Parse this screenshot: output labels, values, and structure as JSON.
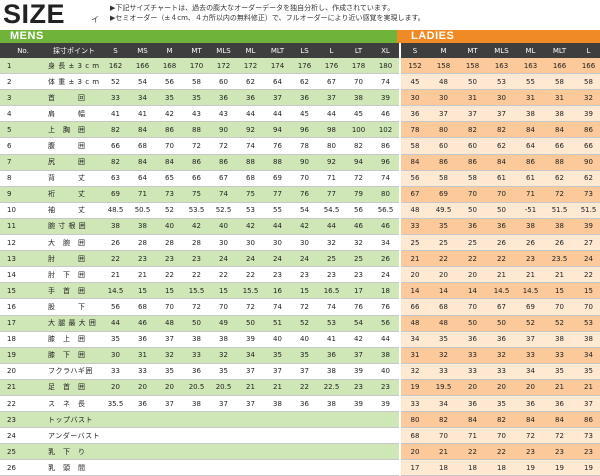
{
  "title": "SIZE",
  "title_mark": "イ",
  "notes": [
    "▶下記サイズチャートは、過去の膨大なオーダーデータを独自分析し、作成されています。",
    "▶セミオーダー（±４cm、４カ所以内の無料修正）で、フルオーダーにより近い感覚を実現します。"
  ],
  "mens_label": "MENS",
  "ladies_label": "LADIES",
  "columns": {
    "no": "No.",
    "item": "採寸ポイント",
    "mens": [
      "S",
      "MS",
      "M",
      "MT",
      "MLS",
      "ML",
      "MLT",
      "LS",
      "L",
      "LT",
      "XL"
    ],
    "ladies": [
      "S",
      "M",
      "MT",
      "MLS",
      "ML",
      "MLT",
      "L"
    ]
  },
  "rows": [
    {
      "no": "1",
      "item": "身 長 ± 3 c m",
      "mens": [
        "162",
        "166",
        "168",
        "170",
        "172",
        "172",
        "174",
        "176",
        "176",
        "178",
        "180"
      ],
      "ladies": [
        "152",
        "158",
        "158",
        "163",
        "163",
        "166",
        "166"
      ]
    },
    {
      "no": "2",
      "item": "体 重 ± 3 c m",
      "mens": [
        "52",
        "54",
        "56",
        "58",
        "60",
        "62",
        "64",
        "62",
        "67",
        "70",
        "74"
      ],
      "ladies": [
        "45",
        "48",
        "50",
        "53",
        "55",
        "58",
        "58"
      ]
    },
    {
      "no": "3",
      "item": "首　　　回",
      "mens": [
        "33",
        "34",
        "35",
        "35",
        "36",
        "36",
        "37",
        "36",
        "37",
        "38",
        "39"
      ],
      "ladies": [
        "30",
        "30",
        "31",
        "30",
        "31",
        "31",
        "32"
      ]
    },
    {
      "no": "4",
      "item": "肩　　　幅",
      "mens": [
        "41",
        "41",
        "42",
        "43",
        "43",
        "44",
        "44",
        "45",
        "44",
        "45",
        "46"
      ],
      "ladies": [
        "36",
        "37",
        "37",
        "37",
        "38",
        "38",
        "39"
      ]
    },
    {
      "no": "5",
      "item": "上　胸　囲",
      "mens": [
        "82",
        "84",
        "86",
        "88",
        "90",
        "92",
        "94",
        "96",
        "98",
        "100",
        "102"
      ],
      "ladies": [
        "78",
        "80",
        "82",
        "82",
        "84",
        "84",
        "86"
      ]
    },
    {
      "no": "6",
      "item": "腹　　　囲",
      "mens": [
        "66",
        "68",
        "70",
        "72",
        "72",
        "74",
        "76",
        "78",
        "80",
        "82",
        "86"
      ],
      "ladies": [
        "58",
        "60",
        "60",
        "62",
        "64",
        "66",
        "66"
      ]
    },
    {
      "no": "7",
      "item": "尻　　　囲",
      "mens": [
        "82",
        "84",
        "84",
        "86",
        "86",
        "88",
        "88",
        "90",
        "92",
        "94",
        "96"
      ],
      "ladies": [
        "84",
        "86",
        "86",
        "84",
        "86",
        "88",
        "90"
      ]
    },
    {
      "no": "8",
      "item": "背　　　丈",
      "mens": [
        "63",
        "64",
        "65",
        "66",
        "67",
        "68",
        "69",
        "70",
        "71",
        "72",
        "74"
      ],
      "ladies": [
        "56",
        "58",
        "58",
        "61",
        "61",
        "62",
        "62"
      ]
    },
    {
      "no": "9",
      "item": "裄　　　丈",
      "mens": [
        "69",
        "71",
        "73",
        "75",
        "74",
        "75",
        "77",
        "76",
        "77",
        "79",
        "80"
      ],
      "ladies": [
        "67",
        "69",
        "70",
        "70",
        "71",
        "72",
        "73"
      ]
    },
    {
      "no": "10",
      "item": "袖　　　丈",
      "mens": [
        "48.5",
        "50.5",
        "52",
        "53.5",
        "52.5",
        "53",
        "55",
        "54",
        "54.5",
        "56",
        "56.5"
      ],
      "ladies": [
        "48",
        "49.5",
        "50",
        "50",
        "-51",
        "51.5",
        "51.5"
      ]
    },
    {
      "no": "11",
      "item": "腕 寸 根 囲",
      "mens": [
        "38",
        "38",
        "40",
        "42",
        "40",
        "42",
        "44",
        "42",
        "44",
        "46",
        "46"
      ],
      "ladies": [
        "33",
        "35",
        "36",
        "36",
        "38",
        "38",
        "39"
      ]
    },
    {
      "no": "12",
      "item": "大　腕　囲",
      "mens": [
        "26",
        "28",
        "28",
        "28",
        "30",
        "30",
        "30",
        "30",
        "32",
        "32",
        "34"
      ],
      "ladies": [
        "25",
        "25",
        "25",
        "26",
        "26",
        "26",
        "27"
      ]
    },
    {
      "no": "13",
      "item": "肘　　　囲",
      "mens": [
        "22",
        "23",
        "23",
        "23",
        "24",
        "24",
        "24",
        "24",
        "25",
        "25",
        "26"
      ],
      "ladies": [
        "21",
        "22",
        "22",
        "22",
        "23",
        "23.5",
        "24"
      ]
    },
    {
      "no": "14",
      "item": "肘　下　囲",
      "mens": [
        "21",
        "21",
        "22",
        "22",
        "22",
        "22",
        "23",
        "23",
        "23",
        "23",
        "24"
      ],
      "ladies": [
        "20",
        "20",
        "20",
        "21",
        "21",
        "21",
        "22"
      ]
    },
    {
      "no": "15",
      "item": "手　首　囲",
      "mens": [
        "14.5",
        "15",
        "15",
        "15.5",
        "15",
        "15.5",
        "16",
        "15",
        "16.5",
        "17",
        "18"
      ],
      "ladies": [
        "14",
        "14",
        "14",
        "14.5",
        "14.5",
        "15",
        "15"
      ]
    },
    {
      "no": "16",
      "item": "股　　　下",
      "mens": [
        "56",
        "68",
        "70",
        "72",
        "70",
        "72",
        "74",
        "72",
        "74",
        "76",
        "76"
      ],
      "ladies": [
        "66",
        "68",
        "70",
        "67",
        "69",
        "70",
        "70"
      ]
    },
    {
      "no": "17",
      "item": "大 腿 最 大 囲",
      "mens": [
        "44",
        "46",
        "48",
        "50",
        "49",
        "50",
        "51",
        "52",
        "53",
        "54",
        "56"
      ],
      "ladies": [
        "48",
        "48",
        "50",
        "50",
        "52",
        "52",
        "53"
      ]
    },
    {
      "no": "18",
      "item": "膝　上　囲",
      "mens": [
        "35",
        "36",
        "37",
        "38",
        "38",
        "39",
        "40",
        "40",
        "41",
        "42",
        "44"
      ],
      "ladies": [
        "34",
        "35",
        "36",
        "36",
        "37",
        "38",
        "38"
      ]
    },
    {
      "no": "19",
      "item": "膝　下　囲",
      "mens": [
        "30",
        "31",
        "32",
        "33",
        "32",
        "34",
        "35",
        "35",
        "36",
        "37",
        "38"
      ],
      "ladies": [
        "31",
        "32",
        "33",
        "32",
        "33",
        "33",
        "34"
      ]
    },
    {
      "no": "20",
      "item": "フクラハギ囲",
      "mens": [
        "33",
        "33",
        "35",
        "36",
        "35",
        "37",
        "37",
        "37",
        "38",
        "39",
        "40"
      ],
      "ladies": [
        "32",
        "33",
        "33",
        "33",
        "34",
        "35",
        "35"
      ]
    },
    {
      "no": "21",
      "item": "足　首　囲",
      "mens": [
        "20",
        "20",
        "20",
        "20.5",
        "20.5",
        "21",
        "21",
        "22",
        "22.5",
        "23",
        "23"
      ],
      "ladies": [
        "19",
        "19.5",
        "20",
        "20",
        "20",
        "21",
        "21"
      ]
    },
    {
      "no": "22",
      "item": "ス　ネ　長",
      "mens": [
        "35.5",
        "36",
        "37",
        "38",
        "37",
        "37",
        "38",
        "36",
        "38",
        "39",
        "39"
      ],
      "ladies": [
        "33",
        "34",
        "36",
        "35",
        "36",
        "36",
        "37"
      ]
    },
    {
      "no": "23",
      "item": "トップバスト",
      "mens": [
        "",
        "",
        "",
        "",
        "",
        "",
        "",
        "",
        "",
        "",
        ""
      ],
      "ladies": [
        "80",
        "82",
        "84",
        "82",
        "84",
        "84",
        "86"
      ]
    },
    {
      "no": "24",
      "item": "アンダーバスト",
      "mens": [
        "",
        "",
        "",
        "",
        "",
        "",
        "",
        "",
        "",
        "",
        ""
      ],
      "ladies": [
        "68",
        "70",
        "71",
        "70",
        "72",
        "72",
        "73"
      ]
    },
    {
      "no": "25",
      "item": "乳　下　り",
      "mens": [
        "",
        "",
        "",
        "",
        "",
        "",
        "",
        "",
        "",
        "",
        ""
      ],
      "ladies": [
        "20",
        "21",
        "22",
        "22",
        "23",
        "23",
        "23"
      ]
    },
    {
      "no": "26",
      "item": "乳　頭　間",
      "mens": [
        "",
        "",
        "",
        "",
        "",
        "",
        "",
        "",
        "",
        "",
        ""
      ],
      "ladies": [
        "17",
        "18",
        "18",
        "18",
        "19",
        "19",
        "19"
      ]
    }
  ]
}
